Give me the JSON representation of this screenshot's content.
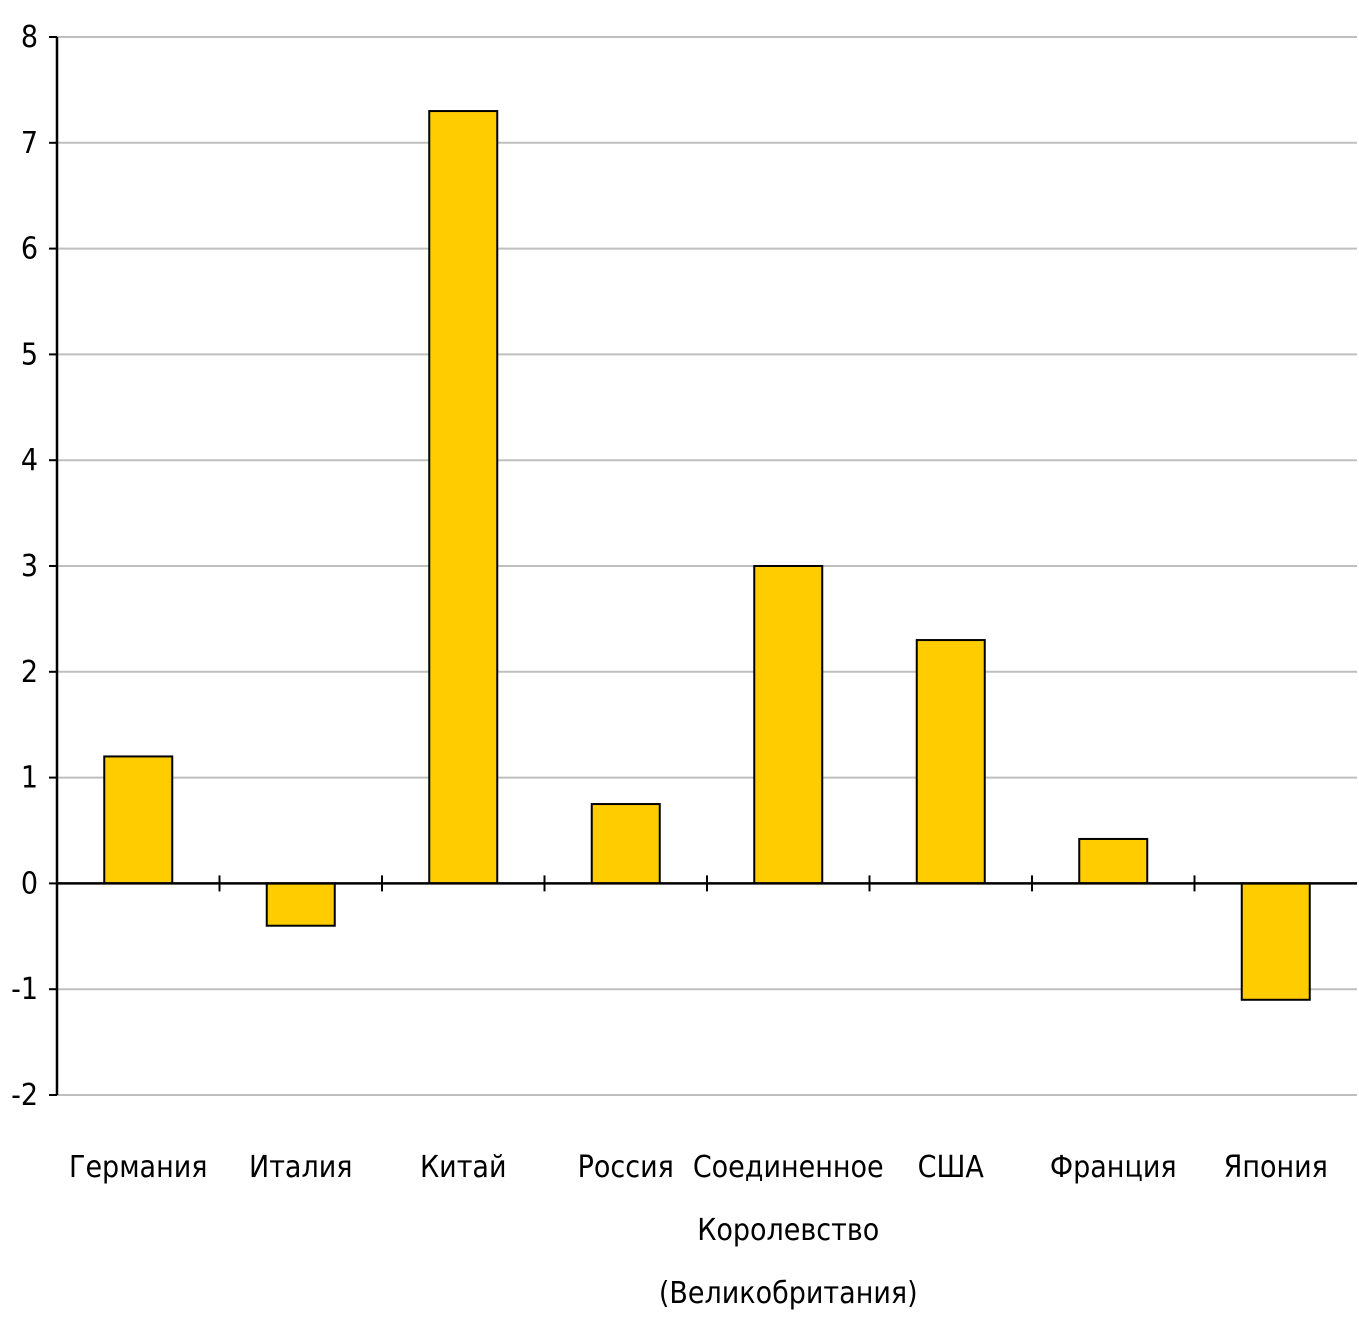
{
  "chart_data": {
    "type": "bar",
    "title": "",
    "xlabel": "",
    "ylabel": "",
    "ylim": [
      -2,
      8
    ],
    "yticks": [
      8,
      7,
      6,
      5,
      4,
      3,
      2,
      1,
      0,
      -1,
      -2
    ],
    "grid": true,
    "categories": [
      [
        "Германия"
      ],
      [
        "Италия"
      ],
      [
        "Китай"
      ],
      [
        "Россия"
      ],
      [
        "Соединенное",
        "Королевство",
        "(Великобритания)"
      ],
      [
        "США"
      ],
      [
        "Франция"
      ],
      [
        "Япония"
      ]
    ],
    "values": [
      1.2,
      -0.4,
      7.3,
      0.75,
      3.0,
      2.3,
      0.42,
      -1.1
    ],
    "colors": {
      "bar": "#FFCC00",
      "bar_stroke": "#000000",
      "grid": "#BFBFBF",
      "axis": "#000000"
    }
  }
}
